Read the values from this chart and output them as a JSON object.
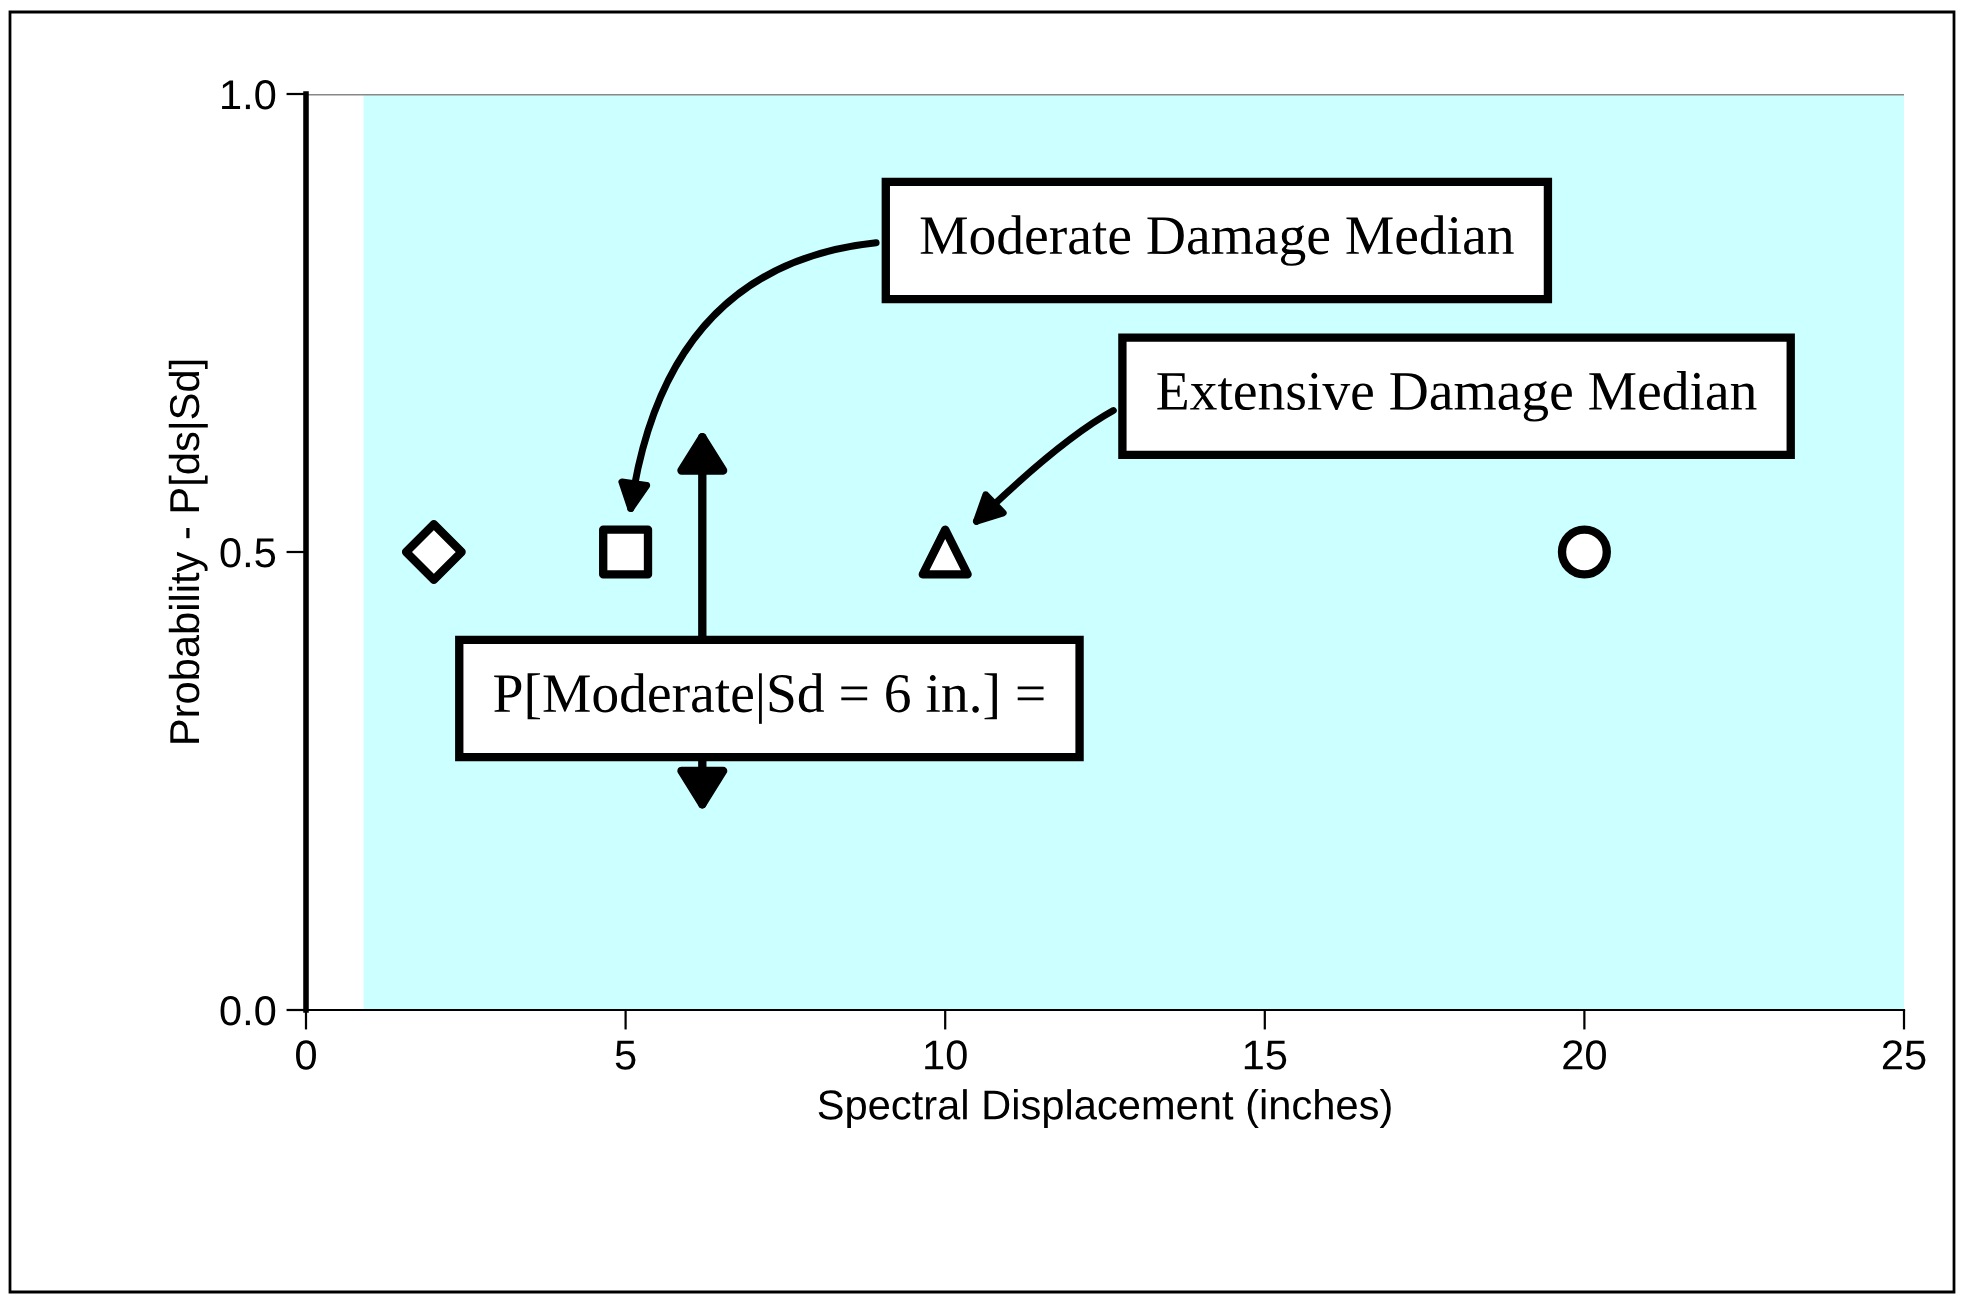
{
  "chart_data": {
    "type": "scatter",
    "xlabel": "Spectral Displacement (inches)",
    "ylabel": "Probability - P[ds|Sd]",
    "xlim": [
      0,
      25
    ],
    "ylim": [
      0,
      1
    ],
    "xticks": [
      0,
      5,
      10,
      15,
      20,
      25
    ],
    "yticks": [
      {
        "value": 0,
        "label": "0.0"
      },
      {
        "value": 0.5,
        "label": "0.5"
      },
      {
        "value": 1,
        "label": "1.0"
      }
    ],
    "grid": false,
    "series": [
      {
        "color": "#000000",
        "marker": "diamond",
        "x": [
          2
        ],
        "values": [
          0.5
        ]
      },
      {
        "color": "#000000",
        "marker": "square",
        "x": [
          5
        ],
        "values": [
          0.5
        ]
      },
      {
        "color": "#000000",
        "marker": "triangle",
        "x": [
          10
        ],
        "values": [
          0.5
        ]
      },
      {
        "color": "#000000",
        "marker": "circle",
        "x": [
          20
        ],
        "values": [
          0.5
        ]
      }
    ],
    "bands": [
      {
        "axis": "x",
        "from": 0.9,
        "to": 25,
        "color": "#ccffff"
      }
    ],
    "annotations": [
      "Moderate Damage Median",
      "Extensive Damage Median",
      "P[Moderate|Sd = 6 in.] ="
    ]
  }
}
